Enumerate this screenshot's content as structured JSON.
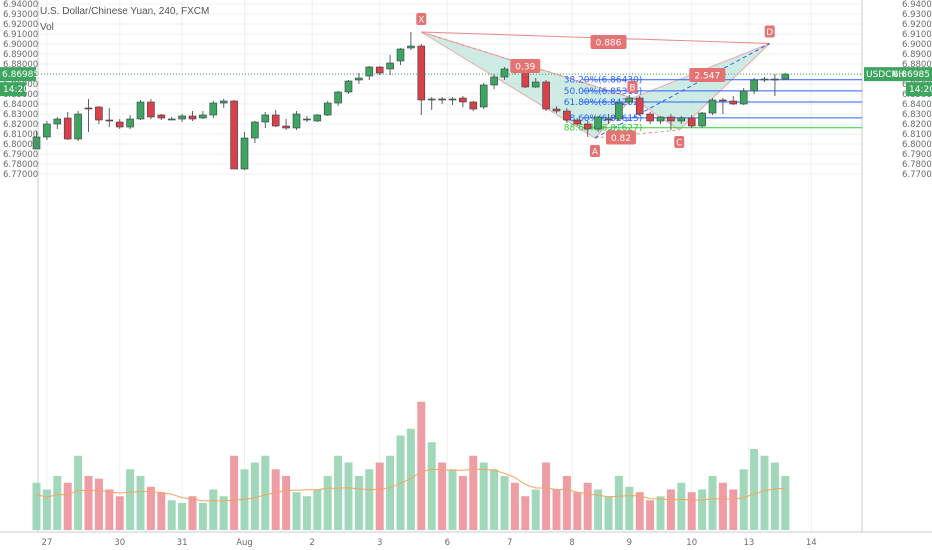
{
  "header": {
    "title": "U.S. Dollar/Chinese Yuan, 240, FXCM",
    "indicator": "Vol"
  },
  "colors": {
    "up": "#3ea561",
    "down": "#d9414a",
    "up_vol": "#8fd1ad",
    "down_vol": "#ea8c93",
    "pattern_fill": "#bfe6dc",
    "pattern_line": "#e88a8a",
    "fib_blue": "#2962ff",
    "fib_green": "#33cc33",
    "price_line": "#3ea561",
    "vol_ma": "#f4a460"
  },
  "chart_data": {
    "type": "candlestick",
    "symbol": "USDCNH",
    "timeframe": "240",
    "ylim": [
      6.765,
      6.9405
    ],
    "y_ticks": [
      6.94,
      6.93,
      6.92,
      6.91,
      6.9,
      6.89,
      6.88,
      6.87,
      6.86,
      6.85,
      6.84,
      6.83,
      6.82,
      6.81,
      6.8,
      6.79,
      6.78,
      6.77
    ],
    "y_tick_labels": [
      "6.94000",
      "6.93000",
      "6.92000",
      "6.91000",
      "6.90000",
      "6.89000",
      "6.88000",
      "6.87000",
      "6.86000",
      "6.85000",
      "6.84000",
      "6.83000",
      "6.82000",
      "6.81000",
      "6.80000",
      "6.79000",
      "6.78000",
      "6.77000"
    ],
    "x_tick_labels": [
      {
        "bar": 1,
        "label": "27"
      },
      {
        "bar": 8,
        "label": "30"
      },
      {
        "bar": 14,
        "label": "31"
      },
      {
        "bar": 20,
        "label": "Aug"
      },
      {
        "bar": 26.5,
        "label": "2"
      },
      {
        "bar": 33,
        "label": "3"
      },
      {
        "bar": 39.5,
        "label": "6"
      },
      {
        "bar": 45.5,
        "label": "7"
      },
      {
        "bar": 51.5,
        "label": "8"
      },
      {
        "bar": 57,
        "label": "9"
      },
      {
        "bar": 63,
        "label": "10"
      },
      {
        "bar": 68.5,
        "label": "13"
      },
      {
        "bar": 74.5,
        "label": "14"
      }
    ],
    "candles": [
      {
        "o": 6.795,
        "h": 6.813,
        "l": 6.795,
        "c": 6.807,
        "v": 0.35
      },
      {
        "o": 6.807,
        "h": 6.823,
        "l": 6.804,
        "c": 6.82,
        "v": 0.3
      },
      {
        "o": 6.82,
        "h": 6.827,
        "l": 6.815,
        "c": 6.825,
        "v": 0.4
      },
      {
        "o": 6.826,
        "h": 6.832,
        "l": 6.804,
        "c": 6.805,
        "v": 0.35
      },
      {
        "o": 6.805,
        "h": 6.833,
        "l": 6.803,
        "c": 6.83,
        "v": 0.55
      },
      {
        "o": 6.836,
        "h": 6.845,
        "l": 6.812,
        "c": 6.835,
        "v": 0.4
      },
      {
        "o": 6.837,
        "h": 6.838,
        "l": 6.82,
        "c": 6.824,
        "v": 0.38
      },
      {
        "o": 6.824,
        "h": 6.836,
        "l": 6.817,
        "c": 6.823,
        "v": 0.3
      },
      {
        "o": 6.822,
        "h": 6.825,
        "l": 6.815,
        "c": 6.817,
        "v": 0.25
      },
      {
        "o": 6.817,
        "h": 6.829,
        "l": 6.815,
        "c": 6.825,
        "v": 0.45
      },
      {
        "o": 6.825,
        "h": 6.844,
        "l": 6.824,
        "c": 6.842,
        "v": 0.4
      },
      {
        "o": 6.842,
        "h": 6.845,
        "l": 6.825,
        "c": 6.827,
        "v": 0.32
      },
      {
        "o": 6.829,
        "h": 6.83,
        "l": 6.824,
        "c": 6.826,
        "v": 0.28
      },
      {
        "o": 6.825,
        "h": 6.827,
        "l": 6.824,
        "c": 6.825,
        "v": 0.22
      },
      {
        "o": 6.825,
        "h": 6.83,
        "l": 6.822,
        "c": 6.828,
        "v": 0.2
      },
      {
        "o": 6.828,
        "h": 6.833,
        "l": 6.823,
        "c": 6.825,
        "v": 0.25
      },
      {
        "o": 6.826,
        "h": 6.833,
        "l": 6.825,
        "c": 6.829,
        "v": 0.2
      },
      {
        "o": 6.829,
        "h": 6.843,
        "l": 6.826,
        "c": 6.841,
        "v": 0.3
      },
      {
        "o": 6.841,
        "h": 6.845,
        "l": 6.836,
        "c": 6.843,
        "v": 0.25
      },
      {
        "o": 6.843,
        "h": 6.844,
        "l": 6.775,
        "c": 6.775,
        "v": 0.55
      },
      {
        "o": 6.775,
        "h": 6.812,
        "l": 6.774,
        "c": 6.806,
        "v": 0.45
      },
      {
        "o": 6.806,
        "h": 6.823,
        "l": 6.801,
        "c": 6.822,
        "v": 0.5
      },
      {
        "o": 6.822,
        "h": 6.832,
        "l": 6.816,
        "c": 6.829,
        "v": 0.55
      },
      {
        "o": 6.829,
        "h": 6.834,
        "l": 6.817,
        "c": 6.818,
        "v": 0.45
      },
      {
        "o": 6.818,
        "h": 6.825,
        "l": 6.814,
        "c": 6.816,
        "v": 0.4
      },
      {
        "o": 6.816,
        "h": 6.833,
        "l": 6.814,
        "c": 6.83,
        "v": 0.28
      },
      {
        "o": 6.824,
        "h": 6.828,
        "l": 6.822,
        "c": 6.825,
        "v": 0.25
      },
      {
        "o": 6.823,
        "h": 6.83,
        "l": 6.822,
        "c": 6.829,
        "v": 0.3
      },
      {
        "o": 6.829,
        "h": 6.843,
        "l": 6.828,
        "c": 6.841,
        "v": 0.4
      },
      {
        "o": 6.841,
        "h": 6.853,
        "l": 6.838,
        "c": 6.852,
        "v": 0.55
      },
      {
        "o": 6.852,
        "h": 6.864,
        "l": 6.85,
        "c": 6.863,
        "v": 0.5
      },
      {
        "o": 6.864,
        "h": 6.871,
        "l": 6.86,
        "c": 6.866,
        "v": 0.4
      },
      {
        "o": 6.868,
        "h": 6.878,
        "l": 6.864,
        "c": 6.877,
        "v": 0.45
      },
      {
        "o": 6.877,
        "h": 6.878,
        "l": 6.869,
        "c": 6.871,
        "v": 0.5
      },
      {
        "o": 6.875,
        "h": 6.889,
        "l": 6.869,
        "c": 6.881,
        "v": 0.55
      },
      {
        "o": 6.883,
        "h": 6.896,
        "l": 6.879,
        "c": 6.895,
        "v": 0.7
      },
      {
        "o": 6.896,
        "h": 6.912,
        "l": 6.894,
        "c": 6.898,
        "v": 0.75
      },
      {
        "o": 6.898,
        "h": 6.9,
        "l": 6.829,
        "c": 6.844,
        "v": 0.95
      },
      {
        "o": 6.844,
        "h": 6.847,
        "l": 6.834,
        "c": 6.845,
        "v": 0.65
      },
      {
        "o": 6.845,
        "h": 6.847,
        "l": 6.84,
        "c": 6.844,
        "v": 0.5
      },
      {
        "o": 6.844,
        "h": 6.847,
        "l": 6.839,
        "c": 6.845,
        "v": 0.45
      },
      {
        "o": 6.846,
        "h": 6.848,
        "l": 6.837,
        "c": 6.842,
        "v": 0.4
      },
      {
        "o": 6.842,
        "h": 6.843,
        "l": 6.833,
        "c": 6.835,
        "v": 0.55
      },
      {
        "o": 6.837,
        "h": 6.861,
        "l": 6.835,
        "c": 6.859,
        "v": 0.5
      },
      {
        "o": 6.859,
        "h": 6.87,
        "l": 6.855,
        "c": 6.867,
        "v": 0.45
      },
      {
        "o": 6.867,
        "h": 6.877,
        "l": 6.864,
        "c": 6.875,
        "v": 0.4
      },
      {
        "o": 6.875,
        "h": 6.876,
        "l": 6.87,
        "c": 6.872,
        "v": 0.35
      },
      {
        "o": 6.872,
        "h": 6.875,
        "l": 6.856,
        "c": 6.857,
        "v": 0.25
      },
      {
        "o": 6.857,
        "h": 6.866,
        "l": 6.856,
        "c": 6.862,
        "v": 0.3
      },
      {
        "o": 6.862,
        "h": 6.864,
        "l": 6.833,
        "c": 6.835,
        "v": 0.5
      },
      {
        "o": 6.835,
        "h": 6.838,
        "l": 6.831,
        "c": 6.833,
        "v": 0.3
      },
      {
        "o": 6.833,
        "h": 6.836,
        "l": 6.821,
        "c": 6.824,
        "v": 0.4
      },
      {
        "o": 6.824,
        "h": 6.826,
        "l": 6.818,
        "c": 6.82,
        "v": 0.28
      },
      {
        "o": 6.82,
        "h": 6.823,
        "l": 6.807,
        "c": 6.815,
        "v": 0.35
      },
      {
        "o": 6.815,
        "h": 6.828,
        "l": 6.812,
        "c": 6.827,
        "v": 0.3
      },
      {
        "o": 6.825,
        "h": 6.83,
        "l": 6.82,
        "c": 6.825,
        "v": 0.25
      },
      {
        "o": 6.825,
        "h": 6.842,
        "l": 6.823,
        "c": 6.841,
        "v": 0.4
      },
      {
        "o": 6.842,
        "h": 6.849,
        "l": 6.839,
        "c": 6.846,
        "v": 0.32
      },
      {
        "o": 6.846,
        "h": 6.848,
        "l": 6.828,
        "c": 6.83,
        "v": 0.28
      },
      {
        "o": 6.83,
        "h": 6.832,
        "l": 6.82,
        "c": 6.823,
        "v": 0.22
      },
      {
        "o": 6.823,
        "h": 6.828,
        "l": 6.82,
        "c": 6.827,
        "v": 0.25
      },
      {
        "o": 6.827,
        "h": 6.83,
        "l": 6.814,
        "c": 6.823,
        "v": 0.3
      },
      {
        "o": 6.823,
        "h": 6.828,
        "l": 6.82,
        "c": 6.826,
        "v": 0.35
      },
      {
        "o": 6.826,
        "h": 6.829,
        "l": 6.816,
        "c": 6.818,
        "v": 0.28
      },
      {
        "o": 6.818,
        "h": 6.832,
        "l": 6.816,
        "c": 6.831,
        "v": 0.3
      },
      {
        "o": 6.831,
        "h": 6.846,
        "l": 6.829,
        "c": 6.844,
        "v": 0.4
      },
      {
        "o": 6.844,
        "h": 6.846,
        "l": 6.83,
        "c": 6.843,
        "v": 0.35
      },
      {
        "o": 6.843,
        "h": 6.848,
        "l": 6.839,
        "c": 6.84,
        "v": 0.3
      },
      {
        "o": 6.84,
        "h": 6.856,
        "l": 6.839,
        "c": 6.853,
        "v": 0.45
      },
      {
        "o": 6.853,
        "h": 6.866,
        "l": 6.85,
        "c": 6.864,
        "v": 0.6
      },
      {
        "o": 6.864,
        "h": 6.867,
        "l": 6.862,
        "c": 6.865,
        "v": 0.55
      },
      {
        "o": 6.865,
        "h": 6.87,
        "l": 6.848,
        "c": 6.865,
        "v": 0.5
      },
      {
        "o": 6.865,
        "h": 6.871,
        "l": 6.864,
        "c": 6.87,
        "v": 0.4
      }
    ],
    "volume_ma_level": 0.4,
    "last_price": 6.86985,
    "last_price_label": "6.86985",
    "last_symbol_label": "USDCNH",
    "time_to_close_label": "14:20",
    "fib_levels": [
      {
        "price": 6.8643,
        "label": "38.20%(6.86430)",
        "color": "#2962ff"
      },
      {
        "price": 6.85316,
        "label": "50.00%(6.85316)",
        "color": "#2962ff"
      },
      {
        "price": 6.84202,
        "label": "61.80%(6.84202)",
        "color": "#2962ff"
      },
      {
        "price": 6.82615,
        "label": "78.60%(6.82615)",
        "color": "#2962ff"
      },
      {
        "price": 6.81627,
        "label": "88.60%(6.81627)",
        "color": "#33cc33"
      }
    ],
    "harmonic_pattern": {
      "points": [
        {
          "name": "X",
          "bar": 37,
          "price": 6.912
        },
        {
          "name": "A",
          "bar": 53.7,
          "price": 6.806
        },
        {
          "name": "B",
          "bar": 57.3,
          "price": 6.846
        },
        {
          "name": "C",
          "bar": 61.8,
          "price": 6.814
        },
        {
          "name": "D",
          "bar": 70.5,
          "price": 6.9005
        }
      ],
      "ratios": [
        {
          "label": "0.886",
          "bar": 55,
          "price": 6.902
        },
        {
          "label": "0.39",
          "bar": 47,
          "price": 6.878
        },
        {
          "label": "2.547",
          "bar": 64.5,
          "price": 6.869
        },
        {
          "label": "0.82",
          "bar": 56.2,
          "price": 6.8065
        }
      ]
    }
  }
}
